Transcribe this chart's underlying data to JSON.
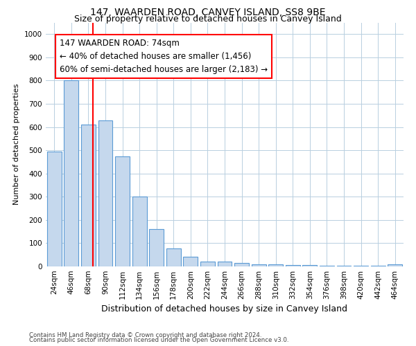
{
  "title": "147, WAARDEN ROAD, CANVEY ISLAND, SS8 9BE",
  "subtitle": "Size of property relative to detached houses in Canvey Island",
  "xlabel": "Distribution of detached houses by size in Canvey Island",
  "ylabel": "Number of detached properties",
  "footnote1": "Contains HM Land Registry data © Crown copyright and database right 2024.",
  "footnote2": "Contains public sector information licensed under the Open Government Licence v3.0.",
  "categories": [
    "24sqm",
    "46sqm",
    "68sqm",
    "90sqm",
    "112sqm",
    "134sqm",
    "156sqm",
    "178sqm",
    "200sqm",
    "222sqm",
    "244sqm",
    "266sqm",
    "288sqm",
    "310sqm",
    "332sqm",
    "354sqm",
    "376sqm",
    "398sqm",
    "420sqm",
    "442sqm",
    "464sqm"
  ],
  "values": [
    495,
    800,
    610,
    630,
    475,
    300,
    160,
    78,
    42,
    22,
    22,
    16,
    10,
    10,
    5,
    5,
    3,
    3,
    3,
    3,
    8
  ],
  "bar_color": "#c5d8ed",
  "bar_edge_color": "#5b9bd5",
  "annotation_label": "147 WAARDEN ROAD: 74sqm",
  "annotation_line1": "← 40% of detached houses are smaller (1,456)",
  "annotation_line2": "60% of semi-detached houses are larger (2,183) →",
  "annotation_box_color": "white",
  "annotation_box_edgecolor": "red",
  "ylim": [
    0,
    1050
  ],
  "yticks": [
    0,
    100,
    200,
    300,
    400,
    500,
    600,
    700,
    800,
    900,
    1000
  ],
  "background_color": "white",
  "grid_color": "#b8cfe0",
  "title_fontsize": 10,
  "subtitle_fontsize": 9,
  "xlabel_fontsize": 9,
  "ylabel_fontsize": 8,
  "tick_fontsize": 7.5,
  "annotation_fontsize": 8.5
}
